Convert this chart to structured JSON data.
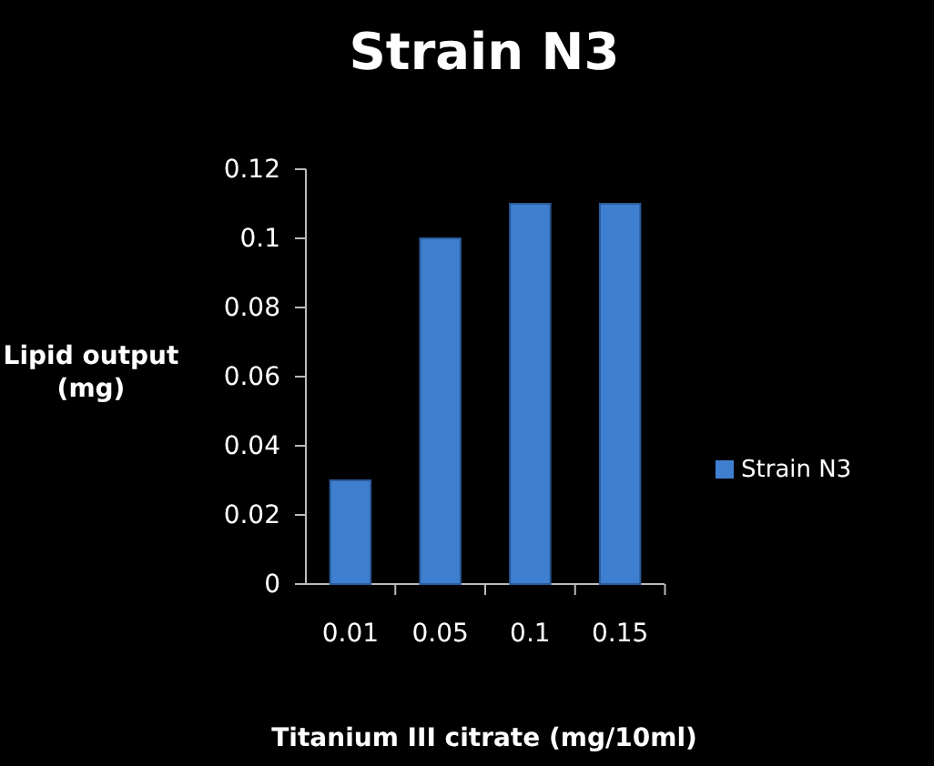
{
  "chart_data": {
    "type": "bar",
    "title": "Strain N3",
    "xlabel": "Titanium III citrate (mg/10ml)",
    "ylabel": "Lipid output (mg)",
    "categories": [
      "0.01",
      "0.05",
      "0.1",
      "0.15"
    ],
    "series": [
      {
        "name": "Strain N3",
        "color": "#3f7fd0",
        "values": [
          0.03,
          0.1,
          0.11,
          0.11
        ]
      }
    ],
    "ylim": [
      0,
      0.12
    ],
    "yticks": [
      0,
      0.02,
      0.04,
      0.06,
      0.08,
      0.1,
      0.12
    ],
    "grid": false,
    "legend": "right"
  }
}
